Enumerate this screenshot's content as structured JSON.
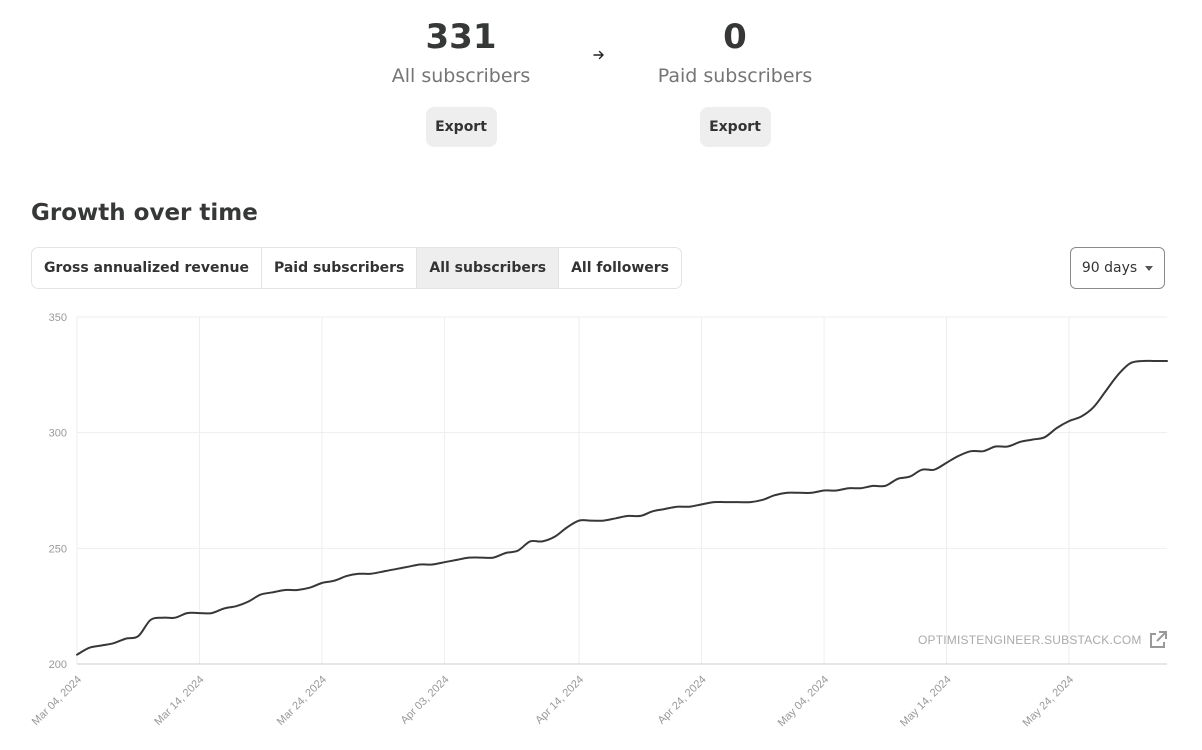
{
  "stats": {
    "all": {
      "value": "331",
      "label": "All subscribers",
      "export_label": "Export"
    },
    "paid": {
      "value": "0",
      "label": "Paid subscribers",
      "export_label": "Export"
    }
  },
  "section_title": "Growth over time",
  "tabs": [
    {
      "label": "Gross annualized revenue",
      "active": false
    },
    {
      "label": "Paid subscribers",
      "active": false
    },
    {
      "label": "All subscribers",
      "active": true
    },
    {
      "label": "All followers",
      "active": false
    }
  ],
  "range_select": {
    "value": "90 days"
  },
  "watermark": "OPTIMISTENGINEER.SUBSTACK.COM",
  "colors": {
    "line": "#363737",
    "grid": "#eeeeee",
    "tick_text": "#999999",
    "active_tab": "#eeeeee"
  },
  "chart_data": {
    "type": "line",
    "title": "",
    "xlabel": "",
    "ylabel": "",
    "ylim": [
      200,
      350
    ],
    "yticks": [
      200,
      250,
      300,
      350
    ],
    "xlim": [
      "2024-03-04",
      "2024-06-01"
    ],
    "xticks": [
      "Mar 04, 2024",
      "Mar 14, 2024",
      "Mar 24, 2024",
      "Apr 03, 2024",
      "Apr 14, 2024",
      "Apr 24, 2024",
      "May 04, 2024",
      "May 14, 2024",
      "May 24, 2024"
    ],
    "xtick_dates": [
      "2024-03-04",
      "2024-03-14",
      "2024-03-24",
      "2024-04-03",
      "2024-04-14",
      "2024-04-24",
      "2024-05-04",
      "2024-05-14",
      "2024-05-24"
    ],
    "grid": true,
    "legend": "none",
    "series": [
      {
        "values": [
          [
            "2024-03-04",
            204
          ],
          [
            "2024-03-05",
            207
          ],
          [
            "2024-03-06",
            208
          ],
          [
            "2024-03-07",
            209
          ],
          [
            "2024-03-08",
            211
          ],
          [
            "2024-03-09",
            212
          ],
          [
            "2024-03-10",
            219
          ],
          [
            "2024-03-11",
            220
          ],
          [
            "2024-03-12",
            220
          ],
          [
            "2024-03-13",
            222
          ],
          [
            "2024-03-14",
            222
          ],
          [
            "2024-03-15",
            222
          ],
          [
            "2024-03-16",
            224
          ],
          [
            "2024-03-17",
            225
          ],
          [
            "2024-03-18",
            227
          ],
          [
            "2024-03-19",
            230
          ],
          [
            "2024-03-20",
            231
          ],
          [
            "2024-03-21",
            232
          ],
          [
            "2024-03-22",
            232
          ],
          [
            "2024-03-23",
            233
          ],
          [
            "2024-03-24",
            235
          ],
          [
            "2024-03-25",
            236
          ],
          [
            "2024-03-26",
            238
          ],
          [
            "2024-03-27",
            239
          ],
          [
            "2024-03-28",
            239
          ],
          [
            "2024-03-29",
            240
          ],
          [
            "2024-03-30",
            241
          ],
          [
            "2024-03-31",
            242
          ],
          [
            "2024-04-01",
            243
          ],
          [
            "2024-04-02",
            243
          ],
          [
            "2024-04-03",
            244
          ],
          [
            "2024-04-04",
            245
          ],
          [
            "2024-04-05",
            246
          ],
          [
            "2024-04-06",
            246
          ],
          [
            "2024-04-07",
            246
          ],
          [
            "2024-04-08",
            248
          ],
          [
            "2024-04-09",
            249
          ],
          [
            "2024-04-10",
            253
          ],
          [
            "2024-04-11",
            253
          ],
          [
            "2024-04-12",
            255
          ],
          [
            "2024-04-13",
            259
          ],
          [
            "2024-04-14",
            262
          ],
          [
            "2024-04-15",
            262
          ],
          [
            "2024-04-16",
            262
          ],
          [
            "2024-04-17",
            263
          ],
          [
            "2024-04-18",
            264
          ],
          [
            "2024-04-19",
            264
          ],
          [
            "2024-04-20",
            266
          ],
          [
            "2024-04-21",
            267
          ],
          [
            "2024-04-22",
            268
          ],
          [
            "2024-04-23",
            268
          ],
          [
            "2024-04-24",
            269
          ],
          [
            "2024-04-25",
            270
          ],
          [
            "2024-04-26",
            270
          ],
          [
            "2024-04-27",
            270
          ],
          [
            "2024-04-28",
            270
          ],
          [
            "2024-04-29",
            271
          ],
          [
            "2024-04-30",
            273
          ],
          [
            "2024-05-01",
            274
          ],
          [
            "2024-05-02",
            274
          ],
          [
            "2024-05-03",
            274
          ],
          [
            "2024-05-04",
            275
          ],
          [
            "2024-05-05",
            275
          ],
          [
            "2024-05-06",
            276
          ],
          [
            "2024-05-07",
            276
          ],
          [
            "2024-05-08",
            277
          ],
          [
            "2024-05-09",
            277
          ],
          [
            "2024-05-10",
            280
          ],
          [
            "2024-05-11",
            281
          ],
          [
            "2024-05-12",
            284
          ],
          [
            "2024-05-13",
            284
          ],
          [
            "2024-05-14",
            287
          ],
          [
            "2024-05-15",
            290
          ],
          [
            "2024-05-16",
            292
          ],
          [
            "2024-05-17",
            292
          ],
          [
            "2024-05-18",
            294
          ],
          [
            "2024-05-19",
            294
          ],
          [
            "2024-05-20",
            296
          ],
          [
            "2024-05-21",
            297
          ],
          [
            "2024-05-22",
            298
          ],
          [
            "2024-05-23",
            302
          ],
          [
            "2024-05-24",
            305
          ],
          [
            "2024-05-25",
            307
          ],
          [
            "2024-05-26",
            311
          ],
          [
            "2024-05-27",
            318
          ],
          [
            "2024-05-28",
            325
          ],
          [
            "2024-05-29",
            330
          ],
          [
            "2024-05-30",
            331
          ],
          [
            "2024-05-31",
            331
          ],
          [
            "2024-06-01",
            331
          ]
        ]
      }
    ]
  }
}
